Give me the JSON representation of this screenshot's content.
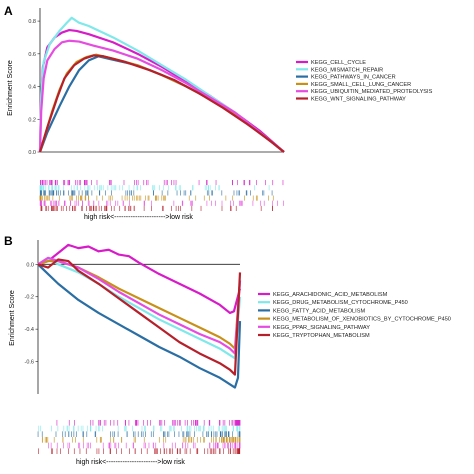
{
  "chart_data": [
    {
      "panel": "A",
      "type": "line",
      "ylabel": "Enrichment Score",
      "ylim": [
        0,
        0.88
      ],
      "yticks": [
        "0.0",
        "0.2",
        "0.4",
        "0.6",
        "0.8"
      ],
      "rank_axis_label": "high risk<---------------------->low risk",
      "series": [
        {
          "name": "KEGG_CELL_CYCLE",
          "color": "#d81bc8",
          "values": [
            [
              0,
              0
            ],
            [
              0.004,
              0.3
            ],
            [
              0.012,
              0.52
            ],
            [
              0.03,
              0.64
            ],
            [
              0.06,
              0.7
            ],
            [
              0.09,
              0.73
            ],
            [
              0.12,
              0.745
            ],
            [
              0.15,
              0.74
            ],
            [
              0.2,
              0.72
            ],
            [
              0.3,
              0.67
            ],
            [
              0.4,
              0.6
            ],
            [
              0.5,
              0.52
            ],
            [
              0.6,
              0.43
            ],
            [
              0.7,
              0.34
            ],
            [
              0.8,
              0.24
            ],
            [
              0.9,
              0.13
            ],
            [
              1,
              0
            ]
          ]
        },
        {
          "name": "KEGG_MISMATCH_REPAIR",
          "color": "#7fe8ea",
          "values": [
            [
              0,
              0
            ],
            [
              0.005,
              0.35
            ],
            [
              0.015,
              0.55
            ],
            [
              0.04,
              0.66
            ],
            [
              0.08,
              0.74
            ],
            [
              0.11,
              0.79
            ],
            [
              0.13,
              0.82
            ],
            [
              0.16,
              0.79
            ],
            [
              0.2,
              0.77
            ],
            [
              0.3,
              0.7
            ],
            [
              0.4,
              0.62
            ],
            [
              0.5,
              0.53
            ],
            [
              0.6,
              0.44
            ],
            [
              0.7,
              0.34
            ],
            [
              0.8,
              0.24
            ],
            [
              0.9,
              0.12
            ],
            [
              1,
              0
            ]
          ]
        },
        {
          "name": "KEGG_PATHWAYS_IN_CANCER",
          "color": "#2a6ea3",
          "values": [
            [
              0,
              0
            ],
            [
              0.03,
              0.12
            ],
            [
              0.08,
              0.28
            ],
            [
              0.12,
              0.4
            ],
            [
              0.16,
              0.5
            ],
            [
              0.2,
              0.56
            ],
            [
              0.24,
              0.585
            ],
            [
              0.28,
              0.57
            ],
            [
              0.4,
              0.53
            ],
            [
              0.5,
              0.47
            ],
            [
              0.6,
              0.4
            ],
            [
              0.7,
              0.32
            ],
            [
              0.8,
              0.23
            ],
            [
              0.9,
              0.12
            ],
            [
              1,
              0
            ]
          ]
        },
        {
          "name": "KEGG_SMALL_CELL_LUNG_CANCER",
          "color": "#c89018",
          "values": [
            [
              0,
              0
            ],
            [
              0.02,
              0.1
            ],
            [
              0.05,
              0.25
            ],
            [
              0.08,
              0.38
            ],
            [
              0.11,
              0.48
            ],
            [
              0.15,
              0.55
            ],
            [
              0.19,
              0.58
            ],
            [
              0.23,
              0.595
            ],
            [
              0.3,
              0.57
            ],
            [
              0.4,
              0.53
            ],
            [
              0.5,
              0.47
            ],
            [
              0.6,
              0.4
            ],
            [
              0.7,
              0.32
            ],
            [
              0.8,
              0.23
            ],
            [
              0.9,
              0.12
            ],
            [
              1,
              0
            ]
          ]
        },
        {
          "name": "KEGG_UBIQUITIN_MEDIATED_PROTEOLYSIS",
          "color": "#e64ce0",
          "values": [
            [
              0,
              0
            ],
            [
              0.005,
              0.25
            ],
            [
              0.015,
              0.45
            ],
            [
              0.03,
              0.56
            ],
            [
              0.06,
              0.63
            ],
            [
              0.09,
              0.67
            ],
            [
              0.12,
              0.68
            ],
            [
              0.16,
              0.675
            ],
            [
              0.22,
              0.65
            ],
            [
              0.3,
              0.62
            ],
            [
              0.4,
              0.57
            ],
            [
              0.5,
              0.5
            ],
            [
              0.6,
              0.42
            ],
            [
              0.7,
              0.33
            ],
            [
              0.8,
              0.24
            ],
            [
              0.9,
              0.12
            ],
            [
              1,
              0
            ]
          ]
        },
        {
          "name": "KEGG_WNT_SIGNALING_PATHWAY",
          "color": "#b5202a",
          "values": [
            [
              0,
              0
            ],
            [
              0.03,
              0.15
            ],
            [
              0.07,
              0.33
            ],
            [
              0.1,
              0.45
            ],
            [
              0.14,
              0.53
            ],
            [
              0.18,
              0.57
            ],
            [
              0.22,
              0.59
            ],
            [
              0.26,
              0.585
            ],
            [
              0.35,
              0.55
            ],
            [
              0.45,
              0.5
            ],
            [
              0.55,
              0.44
            ],
            [
              0.65,
              0.36
            ],
            [
              0.75,
              0.27
            ],
            [
              0.85,
              0.17
            ],
            [
              0.95,
              0.06
            ],
            [
              1,
              0
            ]
          ]
        }
      ]
    },
    {
      "panel": "B",
      "type": "line",
      "ylabel": "Enrichment Score",
      "ylim": [
        -0.8,
        0.15
      ],
      "yticks": [
        "0.0",
        "-0.2",
        "-0.4",
        "-0.6"
      ],
      "rank_axis_label": "high risk<---------------------->low risk",
      "series": [
        {
          "name": "KEGG_ARACHIDONIC_ACID_METABOLISM",
          "color": "#d81bc8",
          "values": [
            [
              0,
              0
            ],
            [
              0.05,
              0.02
            ],
            [
              0.1,
              0.07
            ],
            [
              0.15,
              0.12
            ],
            [
              0.2,
              0.1
            ],
            [
              0.25,
              0.11
            ],
            [
              0.3,
              0.08
            ],
            [
              0.35,
              0.09
            ],
            [
              0.4,
              0.06
            ],
            [
              0.45,
              0.05
            ],
            [
              0.5,
              0.01
            ],
            [
              0.6,
              -0.06
            ],
            [
              0.7,
              -0.12
            ],
            [
              0.8,
              -0.18
            ],
            [
              0.9,
              -0.25
            ],
            [
              0.95,
              -0.3
            ],
            [
              0.97,
              -0.29
            ],
            [
              1,
              -0.15
            ]
          ]
        },
        {
          "name": "KEGG_DRUG_METABOLISM_CYTOCHROME_P450",
          "color": "#7fe8ea",
          "values": [
            [
              0,
              0
            ],
            [
              0.05,
              0.03
            ],
            [
              0.1,
              0.0
            ],
            [
              0.2,
              -0.05
            ],
            [
              0.3,
              -0.12
            ],
            [
              0.4,
              -0.2
            ],
            [
              0.5,
              -0.27
            ],
            [
              0.6,
              -0.34
            ],
            [
              0.7,
              -0.4
            ],
            [
              0.8,
              -0.46
            ],
            [
              0.9,
              -0.52
            ],
            [
              0.95,
              -0.56
            ],
            [
              0.975,
              -0.58
            ],
            [
              1,
              -0.2
            ]
          ]
        },
        {
          "name": "KEGG_FATTY_ACID_METABOLISM",
          "color": "#2a6ea3",
          "values": [
            [
              0,
              0
            ],
            [
              0.05,
              -0.06
            ],
            [
              0.1,
              -0.12
            ],
            [
              0.2,
              -0.22
            ],
            [
              0.3,
              -0.3
            ],
            [
              0.4,
              -0.37
            ],
            [
              0.5,
              -0.44
            ],
            [
              0.6,
              -0.51
            ],
            [
              0.7,
              -0.57
            ],
            [
              0.8,
              -0.64
            ],
            [
              0.9,
              -0.7
            ],
            [
              0.95,
              -0.74
            ],
            [
              0.975,
              -0.76
            ],
            [
              0.99,
              -0.7
            ],
            [
              1,
              -0.35
            ]
          ]
        },
        {
          "name": "KEGG_METABOLISM_OF_XENOBIOTICS_BY_CYTOCHROME_P450",
          "color": "#c89018",
          "values": [
            [
              0,
              0
            ],
            [
              0.05,
              0.02
            ],
            [
              0.1,
              0.02
            ],
            [
              0.2,
              -0.02
            ],
            [
              0.3,
              -0.08
            ],
            [
              0.4,
              -0.15
            ],
            [
              0.5,
              -0.21
            ],
            [
              0.6,
              -0.27
            ],
            [
              0.7,
              -0.33
            ],
            [
              0.8,
              -0.39
            ],
            [
              0.9,
              -0.45
            ],
            [
              0.95,
              -0.49
            ],
            [
              0.975,
              -0.52
            ],
            [
              1,
              -0.1
            ]
          ]
        },
        {
          "name": "KEGG_PPAR_SIGNALING_PATHWAY",
          "color": "#e64ce0",
          "values": [
            [
              0,
              0
            ],
            [
              0.05,
              0.04
            ],
            [
              0.1,
              0.02
            ],
            [
              0.2,
              -0.02
            ],
            [
              0.3,
              -0.09
            ],
            [
              0.4,
              -0.17
            ],
            [
              0.5,
              -0.24
            ],
            [
              0.6,
              -0.31
            ],
            [
              0.7,
              -0.37
            ],
            [
              0.8,
              -0.43
            ],
            [
              0.9,
              -0.48
            ],
            [
              0.95,
              -0.52
            ],
            [
              0.975,
              -0.55
            ],
            [
              1,
              -0.1
            ]
          ]
        },
        {
          "name": "KEGG_TRYPTOPHAN_METABOLISM",
          "color": "#b5202a",
          "values": [
            [
              0,
              0
            ],
            [
              0.05,
              -0.02
            ],
            [
              0.1,
              0.03
            ],
            [
              0.15,
              0.02
            ],
            [
              0.2,
              -0.04
            ],
            [
              0.3,
              -0.12
            ],
            [
              0.4,
              -0.21
            ],
            [
              0.5,
              -0.3
            ],
            [
              0.6,
              -0.39
            ],
            [
              0.7,
              -0.48
            ],
            [
              0.8,
              -0.55
            ],
            [
              0.9,
              -0.61
            ],
            [
              0.95,
              -0.65
            ],
            [
              0.975,
              -0.68
            ],
            [
              1,
              -0.05
            ]
          ]
        }
      ]
    }
  ],
  "panel_labels": [
    "A",
    "B"
  ]
}
